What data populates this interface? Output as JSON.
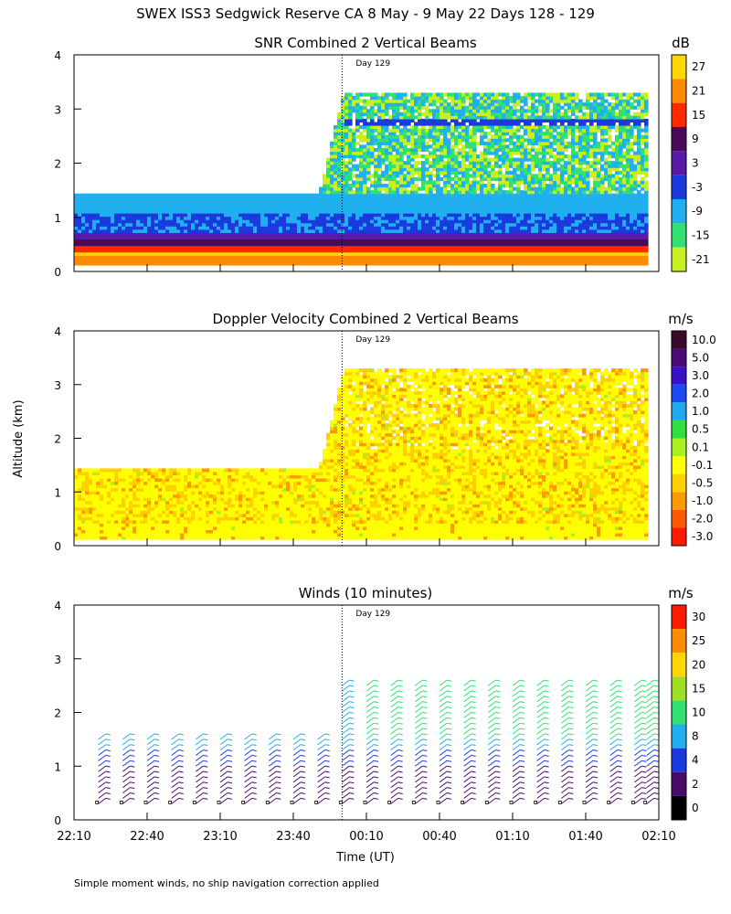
{
  "header": {
    "title": "SWEX ISS3 Sedgwick Reserve CA   8 May -  9 May 22 Days 128 - 129"
  },
  "y_axis_label": "Altitude (km)",
  "x_axis_label": "Time (UT)",
  "footnote": "Simple moment winds, no ship navigation correction applied",
  "day_marker": "Day 129",
  "time_ticks": [
    "22:10",
    "22:40",
    "23:10",
    "23:40",
    "00:10",
    "00:40",
    "01:10",
    "01:40",
    "02:10"
  ],
  "chart_data": [
    {
      "type": "heatmap",
      "title": "SNR Combined 2 Vertical Beams",
      "xlabel": "",
      "ylabel": "Altitude (km)",
      "ylim": [
        0,
        4
      ],
      "yticks": [
        "0",
        "1",
        "2",
        "3",
        "4"
      ],
      "colorbar": {
        "unit": "dB",
        "labels": [
          "27",
          "21",
          "15",
          "9",
          "3",
          "-3",
          "-9",
          "-15",
          "-21"
        ],
        "colors": [
          "#ffd700",
          "#ff8c00",
          "#ff2a00",
          "#4a0a5a",
          "#5a1aa8",
          "#1a3ae0",
          "#20b0f0",
          "#30e070",
          "#c8f020"
        ]
      },
      "data_extent": [
        {
          "time": "22:10",
          "top_km": 1.42
        },
        {
          "time": "23:50",
          "top_km": 1.42
        },
        {
          "time": "00:00",
          "top_km": 3.3
        },
        {
          "time": "02:05",
          "top_km": 3.3
        }
      ]
    },
    {
      "type": "heatmap",
      "title": "Doppler Velocity Combined 2 Vertical Beams",
      "xlabel": "",
      "ylabel": "Altitude (km)",
      "ylim": [
        0,
        4
      ],
      "yticks": [
        "0",
        "1",
        "2",
        "3",
        "4"
      ],
      "colorbar": {
        "unit": "m/s",
        "labels": [
          "10.0",
          "5.0",
          "3.0",
          "2.0",
          "1.0",
          "0.5",
          "0.1",
          "-0.1",
          "-0.5",
          "-1.0",
          "-2.0",
          "-3.0"
        ],
        "colors": [
          "#3a0a2a",
          "#4a0a7a",
          "#3a10c8",
          "#1a4af0",
          "#20a8f0",
          "#30e040",
          "#a8f020",
          "#ffff00",
          "#ffd000",
          "#ff9900",
          "#ff5a00",
          "#ff1a00"
        ]
      },
      "data_extent": [
        {
          "time": "22:10",
          "top_km": 1.42
        },
        {
          "time": "23:50",
          "top_km": 1.42
        },
        {
          "time": "00:00",
          "top_km": 3.25
        },
        {
          "time": "02:05",
          "top_km": 3.25
        }
      ]
    },
    {
      "type": "scatter",
      "title": "Winds (10 minutes)",
      "xlabel": "Time (UT)",
      "ylabel": "Altitude (km)",
      "ylim": [
        0,
        4
      ],
      "yticks": [
        "0",
        "1",
        "2",
        "3",
        "4"
      ],
      "colorbar": {
        "unit": "m/s",
        "labels": [
          "30",
          "25",
          "20",
          "15",
          "10",
          "8",
          "4",
          "2",
          "0"
        ],
        "colors": [
          "#ff1a00",
          "#ff8c00",
          "#ffd700",
          "#a0e020",
          "#30e070",
          "#20b0f0",
          "#1a3ae0",
          "#4a0a6a",
          "#000000"
        ]
      },
      "profile_times": [
        "22:20",
        "22:30",
        "22:40",
        "22:50",
        "23:00",
        "23:10",
        "23:20",
        "23:30",
        "23:40",
        "23:50",
        "00:00",
        "00:10",
        "00:20",
        "00:30",
        "00:40",
        "00:50",
        "01:00",
        "01:10",
        "01:20",
        "01:30",
        "01:40",
        "01:50",
        "02:00",
        "02:05"
      ]
    }
  ]
}
